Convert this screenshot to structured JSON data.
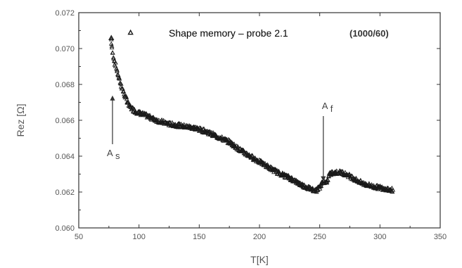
{
  "chart_data": {
    "type": "scatter",
    "title": "Shape memory – probe 2.1",
    "subtitle": "(1000/60)",
    "xlabel": "T[K]",
    "ylabel": "Rez [Ω]",
    "xlim": [
      50,
      350
    ],
    "ylim": [
      0.06,
      0.072
    ],
    "xticks": [
      50,
      100,
      150,
      200,
      250,
      300,
      350
    ],
    "yticks": [
      "0.060",
      "0.062",
      "0.064",
      "0.066",
      "0.068",
      "0.070",
      "0.072"
    ],
    "grid": false,
    "series": [
      {
        "curve": [
          [
            77,
            0.0705
          ],
          [
            78,
            0.0698
          ],
          [
            80,
            0.0692
          ],
          [
            82,
            0.0687
          ],
          [
            85,
            0.068
          ],
          [
            88,
            0.0674
          ],
          [
            92,
            0.0668
          ],
          [
            97,
            0.0665
          ],
          [
            105,
            0.0663
          ],
          [
            115,
            0.066
          ],
          [
            125,
            0.0658
          ],
          [
            135,
            0.0657
          ],
          [
            145,
            0.0656
          ],
          [
            155,
            0.0654
          ],
          [
            165,
            0.0651
          ],
          [
            175,
            0.0648
          ],
          [
            185,
            0.0643
          ],
          [
            195,
            0.0639
          ],
          [
            205,
            0.0635
          ],
          [
            215,
            0.0631
          ],
          [
            225,
            0.0628
          ],
          [
            235,
            0.0624
          ],
          [
            242,
            0.0622
          ],
          [
            247,
            0.0621
          ],
          [
            250,
            0.0623
          ],
          [
            253,
            0.0626
          ],
          [
            256,
            0.0625
          ],
          [
            258,
            0.063
          ],
          [
            262,
            0.0631
          ],
          [
            268,
            0.0631
          ],
          [
            275,
            0.0629
          ],
          [
            285,
            0.0625
          ],
          [
            295,
            0.0623
          ],
          [
            305,
            0.0622
          ],
          [
            311,
            0.0621
          ]
        ],
        "outliers": [
          [
            77,
            0.0706
          ],
          [
            93,
            0.0709
          ]
        ]
      }
    ],
    "annotations": [
      {
        "label": "A",
        "subscript": "s",
        "x": 78,
        "y": 0.0674
      },
      {
        "label": "A",
        "subscript": "f",
        "x": 253,
        "y": 0.0625
      }
    ]
  }
}
